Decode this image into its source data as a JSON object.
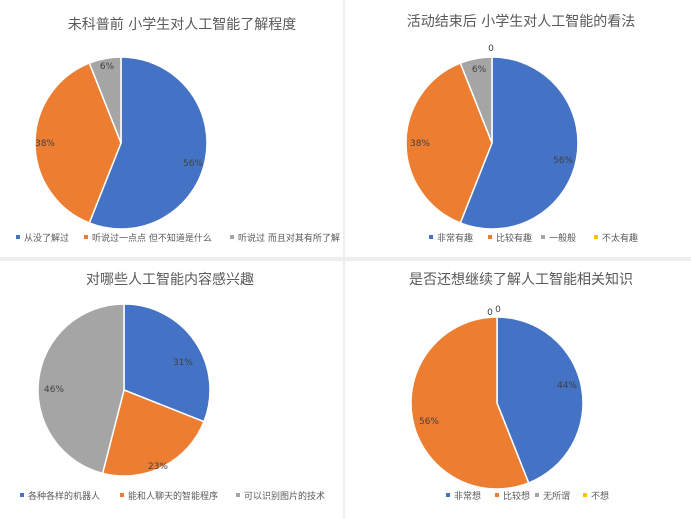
{
  "chart_data": [
    {
      "type": "pie",
      "title": "未科普前 小学生对人工智能了解程度",
      "categories": [
        "从没了解过",
        "听说过一点点 但不知道是什么",
        "听说过 而且对其有所了解"
      ],
      "values": [
        56,
        38,
        6
      ],
      "data_labels": [
        "56%",
        "38%",
        "6%"
      ],
      "legend_position": "bottom"
    },
    {
      "type": "pie",
      "title": "活动结束后 小学生对人工智能的看法",
      "categories": [
        "非常有趣",
        "比较有趣",
        "一般般",
        "不太有趣"
      ],
      "values": [
        56,
        38,
        6,
        0
      ],
      "data_labels": [
        "56%",
        "38%",
        "6%",
        "0"
      ],
      "legend_position": "bottom"
    },
    {
      "type": "pie",
      "title": "对哪些人工智能内容感兴趣",
      "categories": [
        "各种各样的机器人",
        "能和人聊天的智能程序",
        "可以识别图片的技术",
        ""
      ],
      "values": [
        31,
        23,
        46,
        0
      ],
      "data_labels": [
        "31%",
        "23%",
        "46%",
        ""
      ],
      "legend_position": "bottom"
    },
    {
      "type": "pie",
      "title": "是否还想继续了解人工智能相关知识",
      "categories": [
        "非常想",
        "比较想",
        "无所谓",
        "不想"
      ],
      "values": [
        44,
        56,
        0,
        0
      ],
      "data_labels": [
        "44%",
        "56%",
        "0",
        "0"
      ],
      "legend_position": "bottom"
    }
  ],
  "colors": {
    "blue": "#4472c4",
    "orange": "#ed7d31",
    "gray": "#a5a5a5",
    "yellow": "#ffc000",
    "title_text": "#595959",
    "label_text": "#404040"
  }
}
